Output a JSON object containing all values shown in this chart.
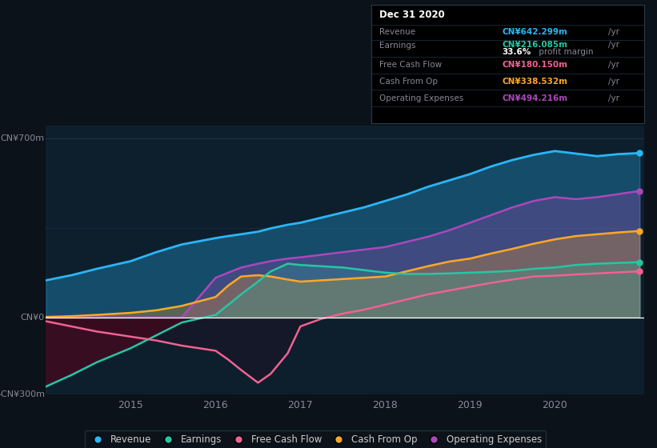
{
  "bg_color": "#0c1219",
  "plot_bg_color": "#0d1f2d",
  "grid_color": "#1e3a4a",
  "zero_line_color": "#ffffff",
  "ylabel_700": "CN¥700m",
  "ylabel_0": "CN¥0",
  "ylabel_neg300": "-CN¥300m",
  "xlabels": [
    "2015",
    "2016",
    "2017",
    "2018",
    "2019",
    "2020"
  ],
  "years": [
    2014.0,
    2014.3,
    2014.6,
    2015.0,
    2015.3,
    2015.6,
    2016.0,
    2016.15,
    2016.3,
    2016.5,
    2016.65,
    2016.85,
    2017.0,
    2017.25,
    2017.5,
    2017.75,
    2018.0,
    2018.25,
    2018.5,
    2018.75,
    2019.0,
    2019.25,
    2019.5,
    2019.75,
    2020.0,
    2020.25,
    2020.5,
    2020.75,
    2021.0
  ],
  "revenue": [
    145,
    165,
    190,
    220,
    255,
    285,
    310,
    318,
    325,
    335,
    348,
    362,
    370,
    390,
    410,
    430,
    455,
    480,
    510,
    535,
    560,
    590,
    615,
    635,
    650,
    640,
    630,
    638,
    642
  ],
  "earnings": [
    -270,
    -225,
    -175,
    -120,
    -70,
    -20,
    10,
    50,
    90,
    140,
    180,
    210,
    205,
    200,
    195,
    185,
    175,
    170,
    170,
    172,
    175,
    178,
    182,
    190,
    195,
    205,
    210,
    213,
    216
  ],
  "free_cash_flow": [
    -15,
    -35,
    -55,
    -75,
    -90,
    -110,
    -130,
    -165,
    -205,
    -255,
    -220,
    -140,
    -35,
    -5,
    15,
    30,
    50,
    70,
    90,
    105,
    120,
    135,
    148,
    160,
    163,
    168,
    172,
    176,
    180
  ],
  "cash_from_op": [
    2,
    5,
    10,
    18,
    28,
    45,
    80,
    125,
    160,
    165,
    160,
    148,
    140,
    145,
    150,
    155,
    160,
    180,
    200,
    218,
    230,
    250,
    268,
    288,
    305,
    318,
    325,
    332,
    338
  ],
  "operating_expenses": [
    0,
    0,
    0,
    0,
    0,
    0,
    155,
    175,
    195,
    210,
    220,
    230,
    235,
    245,
    255,
    265,
    275,
    295,
    315,
    340,
    370,
    400,
    430,
    455,
    470,
    462,
    470,
    482,
    494
  ],
  "revenue_color": "#29b6f6",
  "earnings_color": "#26c6a4",
  "free_cash_flow_color": "#f06292",
  "cash_from_op_color": "#ffa726",
  "operating_expenses_color": "#ab47bc",
  "legend_labels": [
    "Revenue",
    "Earnings",
    "Free Cash Flow",
    "Cash From Op",
    "Operating Expenses"
  ],
  "info_box": {
    "title": "Dec 31 2020",
    "revenue_label": "Revenue",
    "revenue_value": "CN¥642.299m",
    "earnings_label": "Earnings",
    "earnings_value": "CN¥216.085m",
    "margin_label": "33.6%",
    "margin_text": " profit margin",
    "fcf_label": "Free Cash Flow",
    "fcf_value": "CN¥180.150m",
    "cfop_label": "Cash From Op",
    "cfop_value": "CN¥338.532m",
    "opex_label": "Operating Expenses",
    "opex_value": "CN¥494.216m"
  }
}
